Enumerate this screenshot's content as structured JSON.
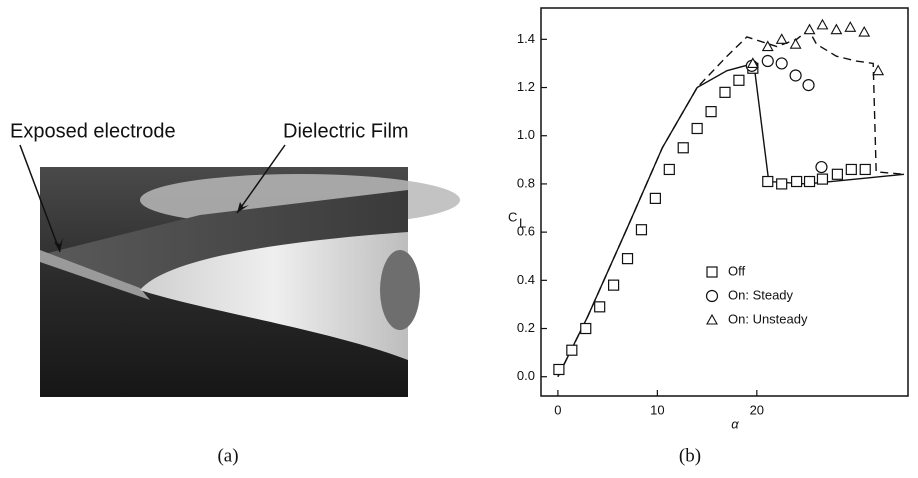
{
  "photo": {
    "labels": [
      "Exposed electrode",
      "Dielectric Film"
    ]
  },
  "captions": [
    "(a)",
    "(b)"
  ],
  "chart_data": {
    "type": "scatter",
    "xlabel": "α",
    "ylabel": "C",
    "ylabel_subscript": "L",
    "xlim": [
      -1.7,
      35.2
    ],
    "ylim": [
      -0.08,
      1.53
    ],
    "xticks": [
      0,
      10,
      20
    ],
    "yticks": [
      {
        "value": 0,
        "label": "0.0"
      },
      {
        "value": 0.2,
        "label": "0.2"
      },
      {
        "value": 0.4,
        "label": "0.4"
      },
      {
        "value": 0.6,
        "label": "0.6"
      },
      {
        "value": 0.8,
        "label": "0.8"
      },
      {
        "value": 1.0,
        "label": "1.0"
      },
      {
        "value": 1.2,
        "label": "1.2"
      },
      {
        "value": 1.4,
        "label": "1.4"
      }
    ],
    "series": [
      {
        "name": "Off",
        "marker": "square",
        "color": "#111111",
        "x": [
          0.1,
          1.4,
          2.8,
          4.2,
          5.6,
          7.0,
          8.4,
          9.8,
          11.2,
          12.6,
          14.0,
          15.4,
          16.8,
          18.2,
          19.6,
          21.1,
          22.5,
          24.0,
          25.3,
          26.6,
          28.1,
          29.5,
          30.9
        ],
        "values": [
          0.03,
          0.11,
          0.2,
          0.29,
          0.38,
          0.49,
          0.61,
          0.74,
          0.86,
          0.95,
          1.03,
          1.1,
          1.18,
          1.23,
          1.28,
          0.81,
          0.8,
          0.81,
          0.81,
          0.82,
          0.84,
          0.86,
          0.86
        ]
      },
      {
        "name": "On: Steady",
        "marker": "circle",
        "color": "#111111",
        "x": [
          19.5,
          21.1,
          22.5,
          23.9,
          25.2,
          26.5
        ],
        "values": [
          1.29,
          1.31,
          1.3,
          1.25,
          1.21,
          0.87
        ]
      },
      {
        "name": "On: Unsteady",
        "marker": "triangle",
        "color": "#111111",
        "x": [
          19.6,
          21.1,
          22.5,
          23.9,
          25.3,
          26.6,
          28.0,
          29.4,
          30.8,
          32.2
        ],
        "values": [
          1.3,
          1.37,
          1.4,
          1.38,
          1.44,
          1.46,
          1.44,
          1.45,
          1.43,
          1.27
        ]
      }
    ],
    "lines": [
      {
        "style": "solid",
        "color": "#111111",
        "x": [
          0,
          3,
          7,
          10.5,
          14,
          17,
          19.7,
          21.2,
          25,
          30,
          34.8
        ],
        "values": [
          0,
          0.25,
          0.62,
          0.95,
          1.2,
          1.27,
          1.3,
          0.81,
          0.8,
          0.82,
          0.84
        ]
      },
      {
        "style": "dashed",
        "color": "#111111",
        "x": [
          0,
          3,
          7,
          10.5,
          14,
          17,
          19,
          22,
          24,
          25.2,
          26,
          28,
          30,
          31.7,
          32,
          34.8
        ],
        "values": [
          0,
          0.25,
          0.62,
          0.95,
          1.2,
          1.33,
          1.41,
          1.37,
          1.4,
          1.44,
          1.38,
          1.33,
          1.31,
          1.3,
          0.85,
          0.84
        ]
      }
    ]
  }
}
